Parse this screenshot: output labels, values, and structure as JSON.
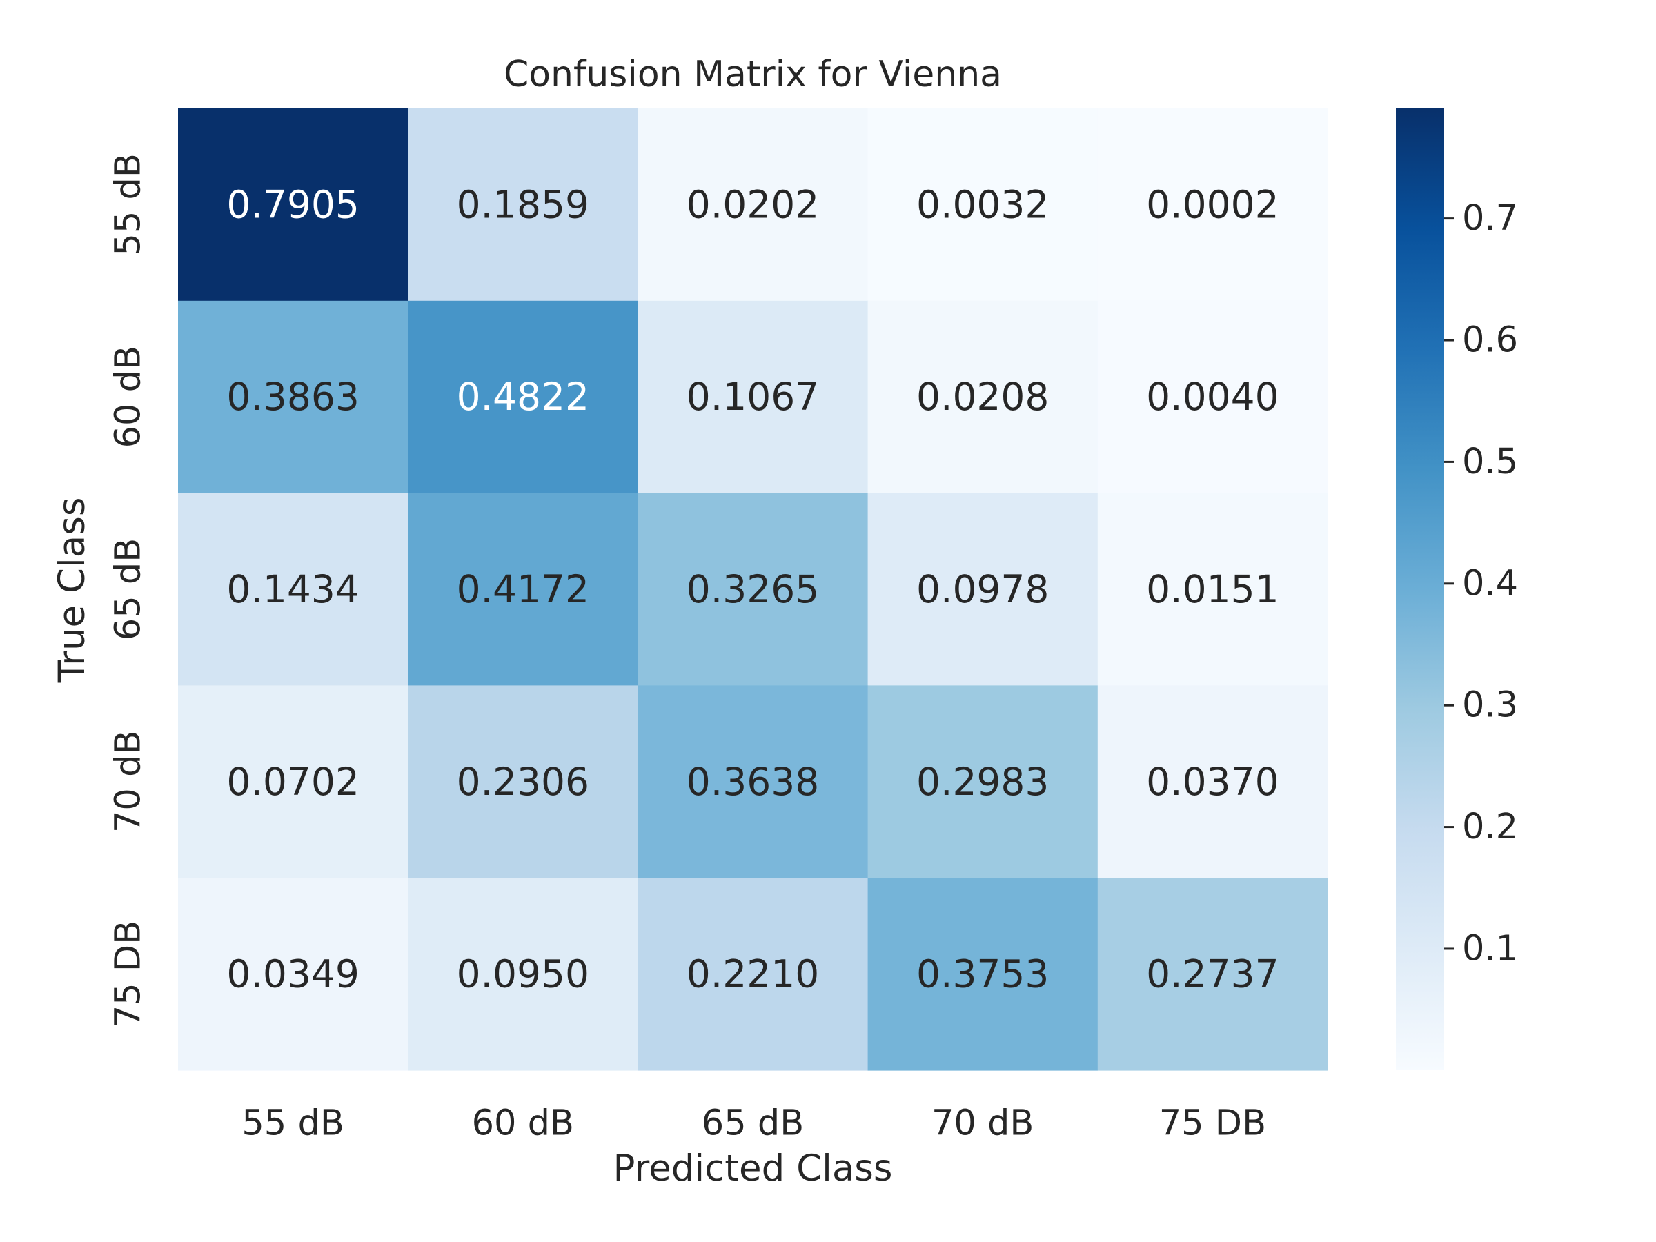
{
  "chart_data": {
    "type": "heatmap",
    "title": "Confusion Matrix for Vienna",
    "xlabel": "Predicted Class",
    "ylabel": "True Class",
    "x_categories": [
      "55 dB",
      "60 dB",
      "65 dB",
      "70 dB",
      "75 DB"
    ],
    "y_categories": [
      "55 dB",
      "60 dB",
      "65 dB",
      "70 dB",
      "75 DB"
    ],
    "values": [
      [
        0.7905,
        0.1859,
        0.0202,
        0.0032,
        0.0002
      ],
      [
        0.3863,
        0.4822,
        0.1067,
        0.0208,
        0.004
      ],
      [
        0.1434,
        0.4172,
        0.3265,
        0.0978,
        0.0151
      ],
      [
        0.0702,
        0.2306,
        0.3638,
        0.2983,
        0.037
      ],
      [
        0.0349,
        0.095,
        0.221,
        0.3753,
        0.2737
      ]
    ],
    "value_labels": [
      [
        "0.7905",
        "0.1859",
        "0.0202",
        "0.0032",
        "0.0002"
      ],
      [
        "0.3863",
        "0.4822",
        "0.1067",
        "0.0208",
        "0.0040"
      ],
      [
        "0.1434",
        "0.4172",
        "0.3265",
        "0.0978",
        "0.0151"
      ],
      [
        "0.0702",
        "0.2306",
        "0.3638",
        "0.2983",
        "0.0370"
      ],
      [
        "0.0349",
        "0.0950",
        "0.2210",
        "0.3753",
        "0.2737"
      ]
    ],
    "colorscale": "Blues",
    "vmin": 0.0002,
    "vmax": 0.7905,
    "colorbar_ticks": [
      0.1,
      0.2,
      0.3,
      0.4,
      0.5,
      0.6,
      0.7
    ],
    "colorbar_tick_labels": [
      "0.1",
      "0.2",
      "0.3",
      "0.4",
      "0.5",
      "0.6",
      "0.7"
    ],
    "grid": false,
    "colors": {
      "text_dark": "#262626",
      "text_light": "#ffffff"
    }
  }
}
